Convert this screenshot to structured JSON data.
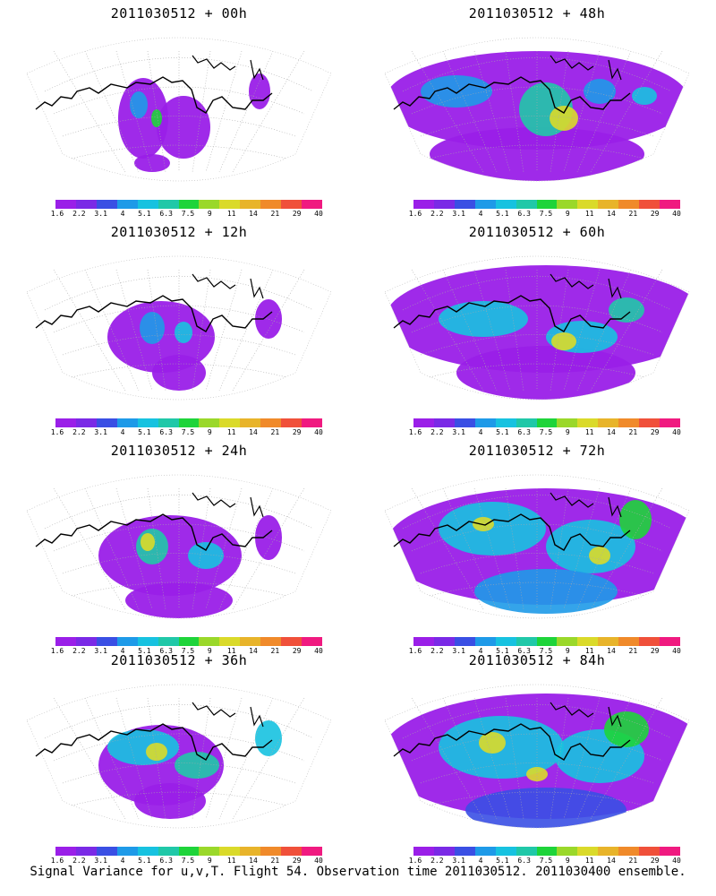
{
  "panels": [
    {
      "title": "2011030512 + 00h"
    },
    {
      "title": "2011030512 + 48h"
    },
    {
      "title": "2011030512 + 12h"
    },
    {
      "title": "2011030512 + 60h"
    },
    {
      "title": "2011030512 + 24h"
    },
    {
      "title": "2011030512 + 72h"
    },
    {
      "title": "2011030512 + 36h"
    },
    {
      "title": "2011030512 + 84h"
    }
  ],
  "colorbar": {
    "colors": [
      "#9a1fe8",
      "#7a2ae6",
      "#3a4fe4",
      "#1e9ae8",
      "#17c2e0",
      "#20c8a8",
      "#1ed43a",
      "#9ad82a",
      "#dada2a",
      "#e8b42a",
      "#f08a2a",
      "#f0503a",
      "#f01a80"
    ],
    "labels": [
      "1.6",
      "2.2",
      "3.1",
      "4",
      "5.1",
      "6.3",
      "7.5",
      "9",
      "11",
      "14",
      "21",
      "29",
      "40"
    ]
  },
  "footer": "Signal Variance for u,v,T. Flight 54. Observation time 2011030512. 2011030400 ensemble."
}
